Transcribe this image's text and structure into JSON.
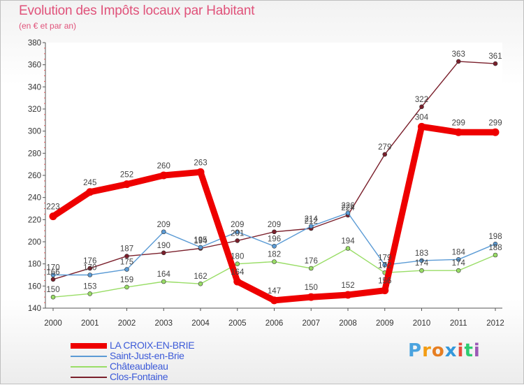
{
  "chart_data": {
    "type": "line",
    "title": "Evolution des Impôts locaux par Habitant",
    "subtitle": "(en € et par an)",
    "x": [
      "2000",
      "2001",
      "2002",
      "2003",
      "2004",
      "2005",
      "2006",
      "2007",
      "2008",
      "2009",
      "2010",
      "2011",
      "2012"
    ],
    "ylim": [
      140,
      380
    ],
    "yticks": [
      "140",
      "160",
      "180",
      "200",
      "220",
      "240",
      "260",
      "280",
      "300",
      "320",
      "340",
      "360",
      "380"
    ],
    "grid": false,
    "legend_position": "bottom-left",
    "series": [
      {
        "name": "LA CROIX-EN-BRIE",
        "color": "#ee0000",
        "values": [
          223,
          245,
          252,
          260,
          263,
          164,
          147,
          150,
          152,
          156,
          304,
          299,
          299
        ],
        "labels": [
          "223",
          "245",
          "252",
          "260",
          "263",
          "164",
          "147",
          "150",
          "152",
          "156",
          "304",
          "299",
          "299"
        ]
      },
      {
        "name": "Saint-Just-en-Brie",
        "color": "#5b9bd5",
        "values": [
          170,
          170,
          175,
          209,
          195,
          209,
          196,
          214,
          226,
          179,
          183,
          184,
          198
        ],
        "labels": [
          "170",
          "170",
          "175",
          "209",
          "195",
          "209",
          "196",
          "214",
          "226",
          "179",
          "183",
          "184",
          "198"
        ]
      },
      {
        "name": "Châteaubleau",
        "color": "#99dd66",
        "values": [
          150,
          153,
          159,
          164,
          162,
          180,
          182,
          176,
          194,
          172,
          174,
          174,
          188
        ],
        "labels": [
          "150",
          "153",
          "159",
          "164",
          "162",
          "180",
          "182",
          "176",
          "194",
          "172",
          "174",
          "174",
          "188"
        ]
      },
      {
        "name": "Clos-Fontaine",
        "color": "#7a1f2b",
        "values": [
          166,
          176,
          187,
          190,
          194,
          201,
          209,
          212,
          224,
          279,
          322,
          363,
          361
        ],
        "labels": [
          "166",
          "176",
          "187",
          "190",
          "194",
          "201",
          "209",
          "212",
          "224",
          "279",
          "322",
          "363",
          "361"
        ]
      }
    ]
  },
  "logo": {
    "text": "Proxiti",
    "letter_colors": [
      "#4aa3df",
      "#f39c12",
      "#e67e22",
      "#3498db",
      "#e74c3c",
      "#2ecc71",
      "#9b59b6"
    ]
  }
}
